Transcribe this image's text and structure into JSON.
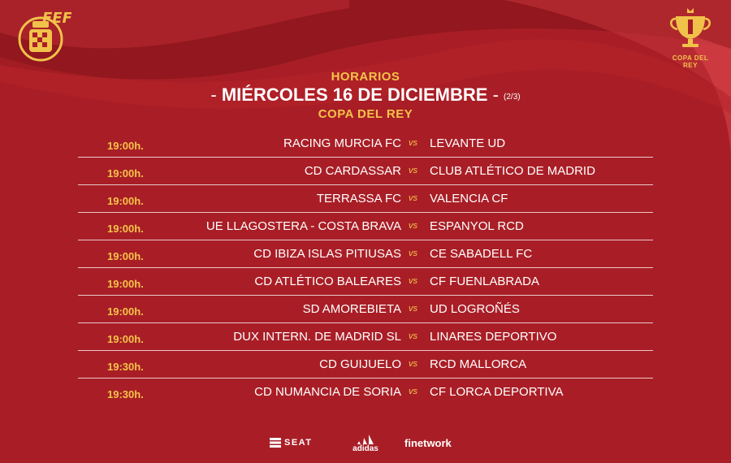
{
  "header": {
    "label_top": "HORARIOS",
    "date_line": "MIÉRCOLES 16 DE DICIEMBRE",
    "dash_left": "-",
    "dash_right": "-",
    "page_indicator": "(2/3)",
    "competition": "COPA DEL REY"
  },
  "logos": {
    "rfef_text": "FEF",
    "copa_text": "COPA DEL REY"
  },
  "matches": [
    {
      "time": "19:00h.",
      "home": "RACING MURCIA FC",
      "vs": "vs",
      "away": "LEVANTE UD"
    },
    {
      "time": "19:00h.",
      "home": "CD CARDASSAR",
      "vs": "vs",
      "away": "CLUB ATLÉTICO DE MADRID"
    },
    {
      "time": "19:00h.",
      "home": "TERRASSA FC",
      "vs": "vs",
      "away": "VALENCIA CF"
    },
    {
      "time": "19:00h.",
      "home": "UE LLAGOSTERA - COSTA BRAVA",
      "vs": "vs",
      "away": "ESPANYOL RCD"
    },
    {
      "time": "19:00h.",
      "home": "CD IBIZA ISLAS PITIUSAS",
      "vs": "vs",
      "away": "CE SABADELL FC"
    },
    {
      "time": "19:00h.",
      "home": "CD ATLÉTICO BALEARES",
      "vs": "vs",
      "away": "CF FUENLABRADA"
    },
    {
      "time": "19:00h.",
      "home": "SD AMOREBIETA",
      "vs": "vs",
      "away": "UD LOGROÑÉS"
    },
    {
      "time": "19:00h.",
      "home": "DUX INTERN. DE MADRID SL",
      "vs": "vs",
      "away": "LINARES DEPORTIVO"
    },
    {
      "time": "19:30h.",
      "home": "CD GUIJUELO",
      "vs": "vs",
      "away": "RCD MALLORCA"
    },
    {
      "time": "19:30h.",
      "home": "CD NUMANCIA DE SORIA",
      "vs": "vs",
      "away": "CF LORCA DEPORTIVA"
    }
  ],
  "sponsors": {
    "seat": "SEAT",
    "adidas": "adidas",
    "finetwork": "finetwork"
  },
  "colors": {
    "background": "#a91e26",
    "accent": "#f4c44a",
    "text": "#ffffff"
  }
}
